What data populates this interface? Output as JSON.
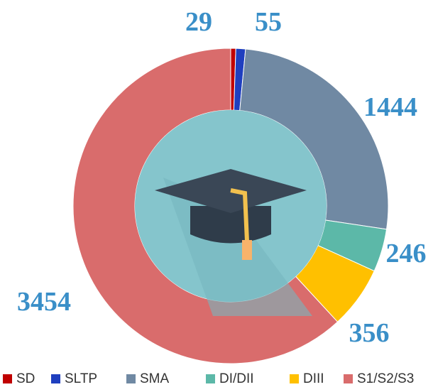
{
  "chart_data": {
    "type": "donut",
    "categories": [
      "SD",
      "SLTP",
      "SMA",
      "DI/DII",
      "DIII",
      "S1/S2/S3"
    ],
    "values": [
      29,
      55,
      1444,
      246,
      356,
      3454
    ],
    "colors": [
      "#c00000",
      "#1f3fbf",
      "#7089a3",
      "#5cb8a8",
      "#ffc000",
      "#d96c6c"
    ]
  }
}
